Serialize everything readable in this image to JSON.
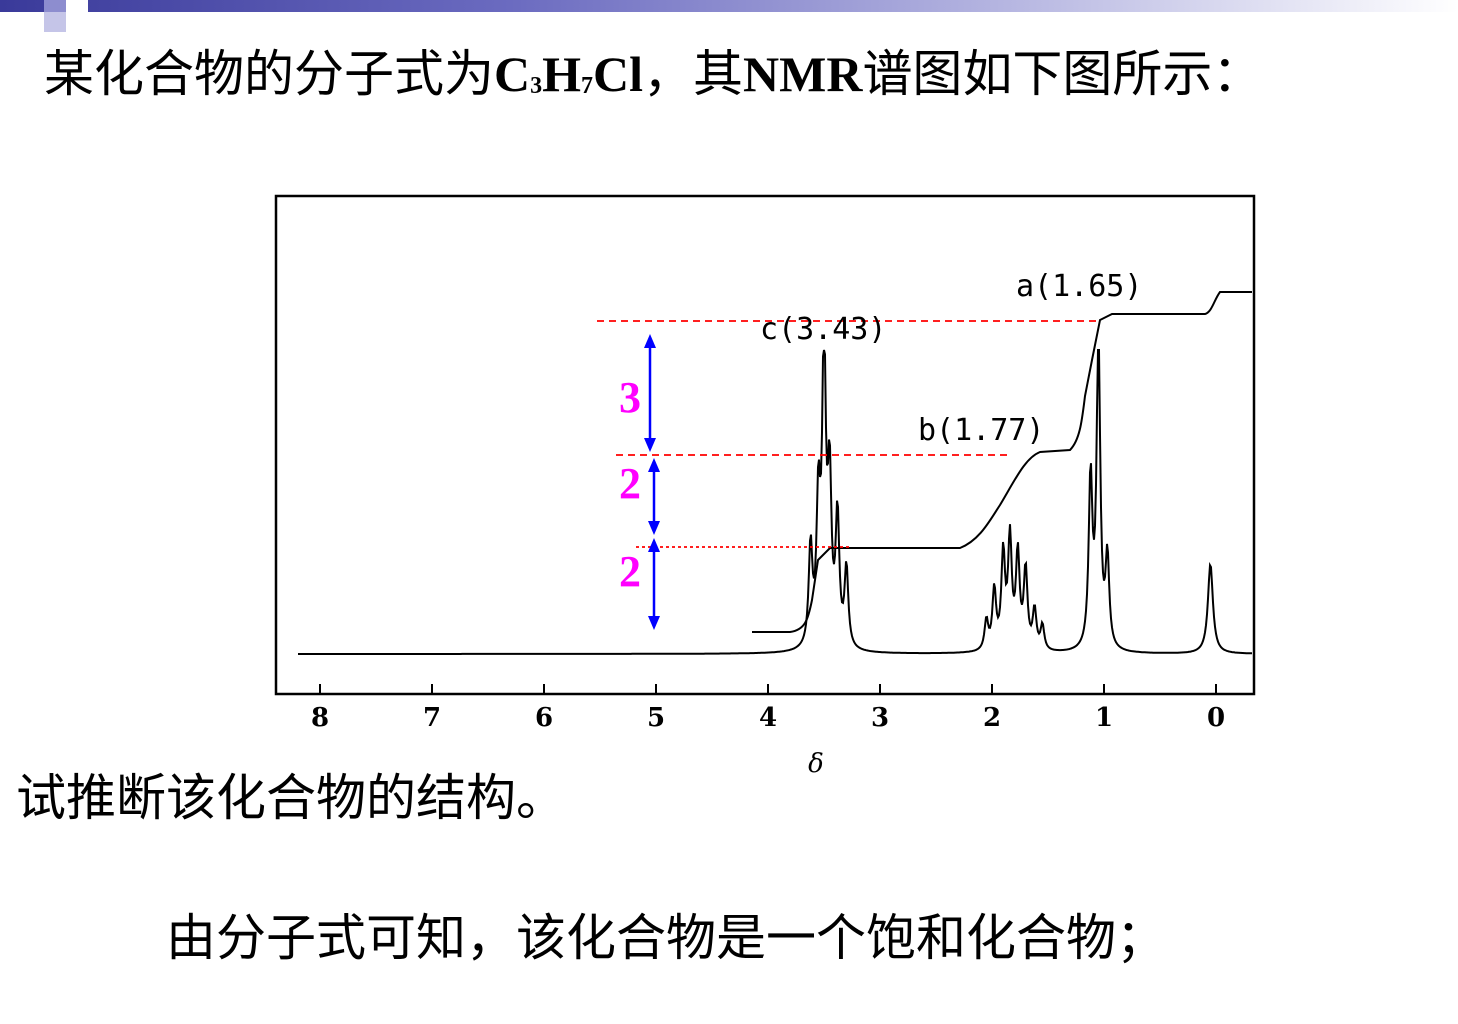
{
  "slide": {
    "title_prefix": "某化合物的分子式为",
    "formula": {
      "c": "C",
      "c_sub": "3",
      "h": "H",
      "h_sub": "7",
      "cl": "Cl"
    },
    "title_suffix_a": "，其",
    "title_nmr": "NMR",
    "title_suffix_b": "谱图如下图所示：",
    "question": "试推断该化合物的结构。",
    "answer": "由分子式可知，该化合物是一个饱和化合物；"
  },
  "colors": {
    "integral_guides": "#ff0000",
    "arrows": "#0000ff",
    "ratio_labels": "#ff00ff"
  },
  "chart_data": {
    "type": "line",
    "title": "",
    "xlabel": "δ",
    "ylabel": "",
    "x_reversed": true,
    "xlim": [
      8.3,
      -0.3
    ],
    "x_ticks": [
      8,
      7,
      6,
      5,
      4,
      3,
      2,
      1,
      0
    ],
    "x_tick_labels": [
      "8",
      "7",
      "6",
      "5",
      "4",
      "3",
      "2",
      "1",
      "0"
    ],
    "peaks": [
      {
        "label": "c",
        "shift": 3.43,
        "text": "c(3.43)",
        "multiplet": "triplet"
      },
      {
        "label": "b",
        "shift": 1.77,
        "text": "b(1.77)",
        "multiplet": "sextet"
      },
      {
        "label": "a",
        "shift": 1.65,
        "text": "a(1.65)",
        "multiplet": "triplet"
      }
    ],
    "reference_peak_shift": 0,
    "integration_ratios": [
      "3",
      "2",
      "2"
    ],
    "grid": false,
    "legend": "none"
  }
}
